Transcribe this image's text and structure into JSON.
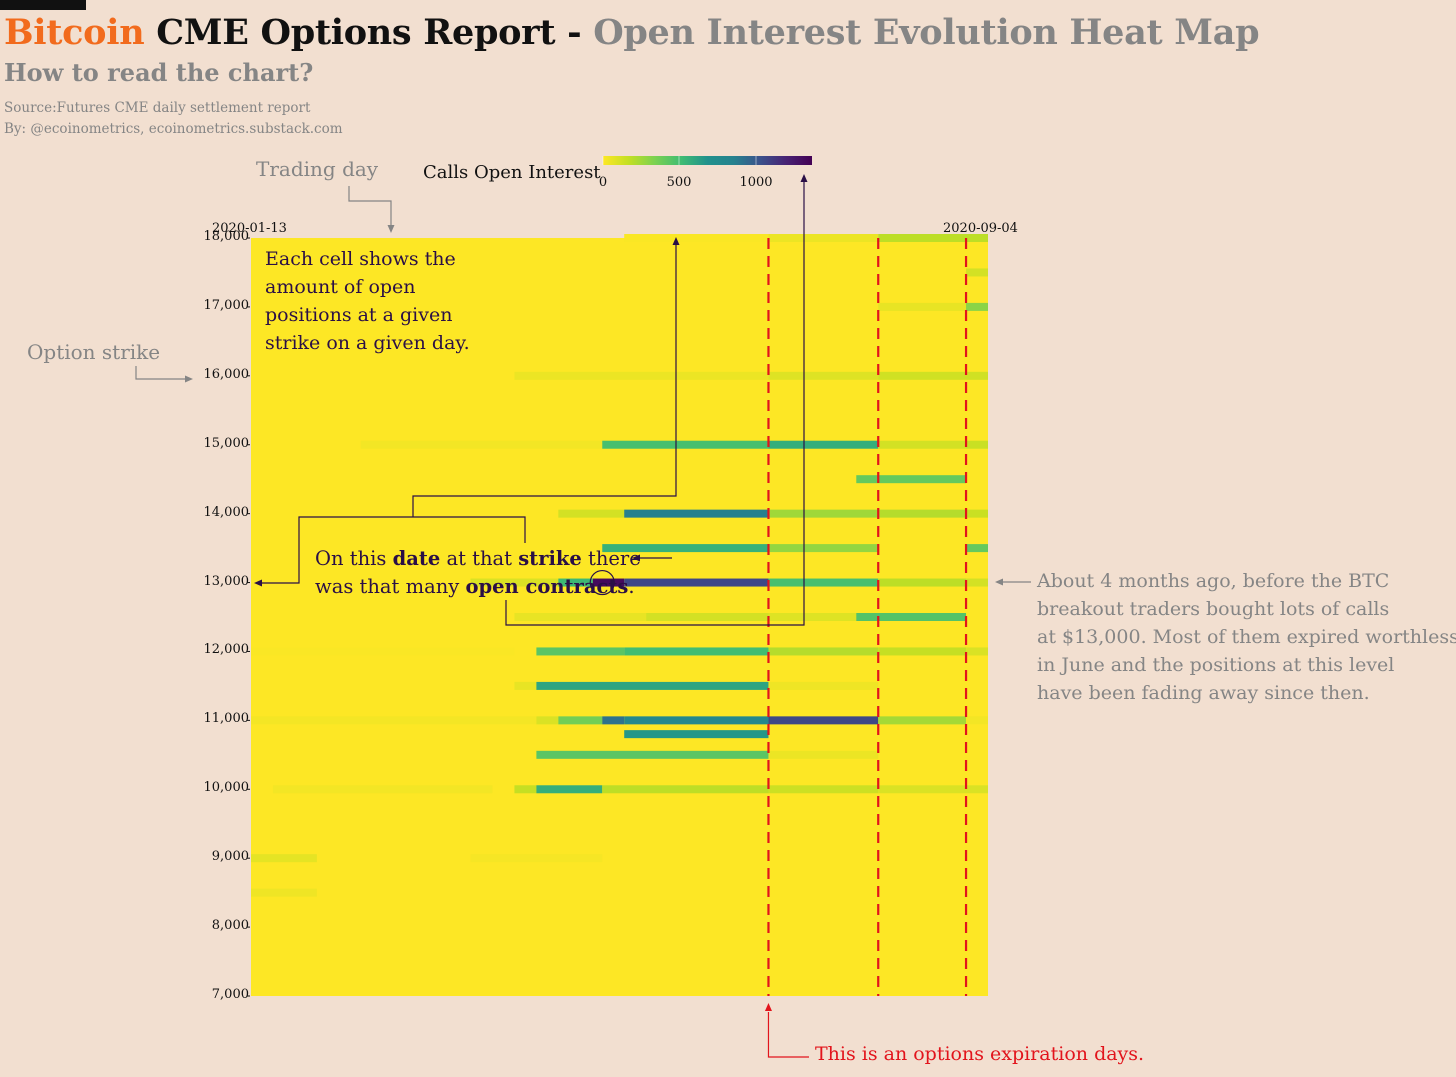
{
  "title": {
    "brand": "Bitcoin",
    "main": " CME Options Report - ",
    "rest": "Open Interest Evolution Heat Map"
  },
  "subtitle": "How to read the chart?",
  "source": "Source:Futures CME daily settlement report",
  "byline": "By: @ecoinometrics, ecoinometrics.substack.com",
  "annotations": {
    "trading_day": "Trading day",
    "option_strike": "Option strike",
    "cell_explainer": [
      "Each cell shows the",
      "amount of open",
      "positions at a given",
      "strike on a given day."
    ],
    "on_this": {
      "p1": "On this ",
      "date": "date",
      "p2": " at that ",
      "strike": "strike",
      "p3": " there",
      "p4": "was that many ",
      "open": "open contracts",
      "p5": "."
    },
    "right_note": [
      "About 4 months ago, before the BTC",
      "breakout traders bought lots of calls",
      "at $13,000. Most of them expired worthless",
      "in June and the positions at this level",
      "have been fading away since then."
    ],
    "expiry_note": "This is an options expiration days."
  },
  "colors": {
    "background": "#f2dfd0",
    "brand": "#f26b1d",
    "muted": "#858585",
    "expiry_line": "#e2141c",
    "annotation_ink": "#2a0f46"
  },
  "chart_data": {
    "type": "heatmap",
    "legend": {
      "title": "Calls Open Interest",
      "ticks": [
        0,
        500,
        1000
      ],
      "tick_labels": [
        "0",
        "500",
        "1000"
      ],
      "range": [
        0,
        1350
      ],
      "colormap": "viridis-reversed"
    },
    "x": {
      "start_date": "2020-01-13",
      "end_date": "2020-09-04",
      "start_label": "2020-01-13",
      "end_label": "2020-09-04"
    },
    "y": {
      "ticks": [
        7000,
        8000,
        9000,
        10000,
        11000,
        12000,
        13000,
        14000,
        15000,
        16000,
        17000,
        18000
      ],
      "tick_labels": [
        "7,000",
        "8,000",
        "9,000",
        "10,000",
        "11,000",
        "12,000",
        "13,000",
        "14,000",
        "15,000",
        "16,000",
        "17,000",
        "18,000"
      ],
      "range": [
        7000,
        18000
      ]
    },
    "expiration_days": [
      "2020-06-26",
      "2020-07-31",
      "2020-08-28"
    ],
    "highlighted_cell": {
      "date": "2020-05-04",
      "strike": 13000
    },
    "series": [
      {
        "strike": 18000,
        "segments": [
          [
            "2020-05-11",
            "2020-06-26",
            10
          ],
          [
            "2020-06-26",
            "2020-07-31",
            50
          ],
          [
            "2020-07-31",
            "2020-09-04",
            180
          ]
        ]
      },
      {
        "strike": 17500,
        "segments": [
          [
            "2020-08-28",
            "2020-09-04",
            120
          ]
        ]
      },
      {
        "strike": 17000,
        "segments": [
          [
            "2020-07-31",
            "2020-08-28",
            60
          ],
          [
            "2020-08-28",
            "2020-09-04",
            300
          ]
        ]
      },
      {
        "strike": 16000,
        "segments": [
          [
            "2020-04-06",
            "2020-06-26",
            50
          ],
          [
            "2020-06-26",
            "2020-07-31",
            90
          ],
          [
            "2020-07-31",
            "2020-09-04",
            130
          ]
        ]
      },
      {
        "strike": 15000,
        "segments": [
          [
            "2020-02-17",
            "2020-05-04",
            30
          ],
          [
            "2020-05-04",
            "2020-06-26",
            480
          ],
          [
            "2020-06-26",
            "2020-07-31",
            560
          ],
          [
            "2020-07-31",
            "2020-08-28",
            120
          ],
          [
            "2020-08-28",
            "2020-09-04",
            150
          ]
        ]
      },
      {
        "strike": 14500,
        "segments": [
          [
            "2020-07-24",
            "2020-08-28",
            400
          ]
        ]
      },
      {
        "strike": 14000,
        "segments": [
          [
            "2020-04-20",
            "2020-05-11",
            120
          ],
          [
            "2020-05-11",
            "2020-06-26",
            850
          ],
          [
            "2020-06-26",
            "2020-07-31",
            250
          ],
          [
            "2020-07-31",
            "2020-08-28",
            200
          ],
          [
            "2020-08-28",
            "2020-09-04",
            150
          ]
        ]
      },
      {
        "strike": 13500,
        "segments": [
          [
            "2020-05-04",
            "2020-06-26",
            550
          ],
          [
            "2020-06-26",
            "2020-07-31",
            280
          ],
          [
            "2020-08-28",
            "2020-09-04",
            400
          ]
        ]
      },
      {
        "strike": 13000,
        "segments": [
          [
            "2020-03-23",
            "2020-04-20",
            100
          ],
          [
            "2020-04-20",
            "2020-05-01",
            520
          ],
          [
            "2020-05-01",
            "2020-05-11",
            1300
          ],
          [
            "2020-05-11",
            "2020-06-26",
            1050
          ],
          [
            "2020-06-26",
            "2020-07-31",
            480
          ],
          [
            "2020-07-31",
            "2020-08-28",
            180
          ],
          [
            "2020-08-28",
            "2020-09-04",
            120
          ]
        ]
      },
      {
        "strike": 12500,
        "segments": [
          [
            "2020-04-06",
            "2020-05-18",
            60
          ],
          [
            "2020-05-18",
            "2020-06-26",
            120
          ],
          [
            "2020-06-26",
            "2020-07-24",
            90
          ],
          [
            "2020-07-24",
            "2020-08-28",
            450
          ]
        ]
      },
      {
        "strike": 12000,
        "segments": [
          [
            "2020-01-13",
            "2020-04-06",
            10
          ],
          [
            "2020-04-13",
            "2020-05-11",
            430
          ],
          [
            "2020-05-11",
            "2020-06-26",
            500
          ],
          [
            "2020-06-26",
            "2020-07-31",
            200
          ],
          [
            "2020-07-31",
            "2020-08-28",
            160
          ],
          [
            "2020-08-28",
            "2020-09-04",
            100
          ]
        ]
      },
      {
        "strike": 11500,
        "segments": [
          [
            "2020-04-06",
            "2020-04-13",
            60
          ],
          [
            "2020-04-13",
            "2020-06-26",
            600
          ],
          [
            "2020-06-26",
            "2020-07-31",
            40
          ]
        ]
      },
      {
        "strike": 11000,
        "segments": [
          [
            "2020-01-13",
            "2020-04-13",
            25
          ],
          [
            "2020-04-13",
            "2020-04-20",
            100
          ],
          [
            "2020-04-20",
            "2020-05-04",
            360
          ],
          [
            "2020-05-04",
            "2020-05-11",
            900
          ],
          [
            "2020-05-11",
            "2020-06-26",
            780
          ],
          [
            "2020-06-26",
            "2020-07-31",
            1050
          ],
          [
            "2020-07-31",
            "2020-08-28",
            240
          ],
          [
            "2020-08-28",
            "2020-09-04",
            30
          ]
        ]
      },
      {
        "strike": 10800,
        "segments": [
          [
            "2020-05-11",
            "2020-06-26",
            650
          ]
        ]
      },
      {
        "strike": 10500,
        "segments": [
          [
            "2020-04-13",
            "2020-06-26",
            430
          ],
          [
            "2020-06-26",
            "2020-07-31",
            50
          ]
        ]
      },
      {
        "strike": 10000,
        "segments": [
          [
            "2020-01-20",
            "2020-03-30",
            30
          ],
          [
            "2020-04-06",
            "2020-04-13",
            160
          ],
          [
            "2020-04-13",
            "2020-05-04",
            560
          ],
          [
            "2020-05-04",
            "2020-06-26",
            180
          ],
          [
            "2020-06-26",
            "2020-07-31",
            140
          ],
          [
            "2020-07-31",
            "2020-09-04",
            100
          ]
        ]
      },
      {
        "strike": 9000,
        "segments": [
          [
            "2020-01-13",
            "2020-02-03",
            70
          ],
          [
            "2020-03-23",
            "2020-05-04",
            20
          ]
        ]
      },
      {
        "strike": 8500,
        "segments": [
          [
            "2020-01-13",
            "2020-02-03",
            40
          ]
        ]
      }
    ]
  }
}
